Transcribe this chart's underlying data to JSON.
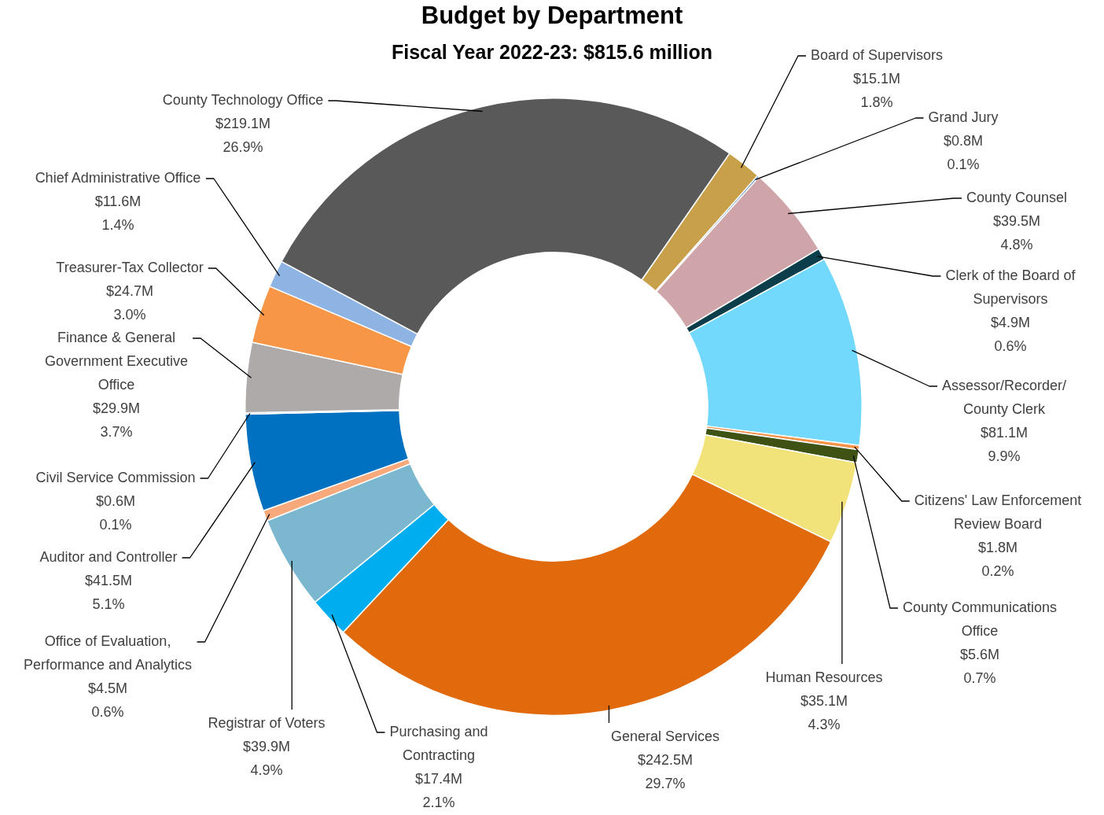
{
  "chart_data": {
    "type": "donut",
    "title": "Budget by Department",
    "subtitle": "Fiscal Year 2022-23: $815.6 million",
    "categories": [
      "Board of Supervisors",
      "Grand Jury",
      "County Counsel",
      "Clerk of the Board of Supervisors",
      "Assessor/Recorder/ County Clerk",
      "Citizens' Law Enforcement Review Board",
      "County Communications Office",
      "Human Resources",
      "General Services",
      "Purchasing and Contracting",
      "Registrar of Voters",
      "Office of Evaluation, Performance and Analytics",
      "Auditor and Controller",
      "Civil Service Commission",
      "Finance & General Government Executive Office",
      "Treasurer-Tax Collector",
      "Chief Administrative Office",
      "County Technology Office"
    ],
    "values": [
      15.1,
      0.8,
      39.5,
      4.9,
      81.1,
      1.8,
      5.6,
      35.1,
      242.5,
      17.4,
      39.9,
      4.5,
      41.5,
      0.6,
      29.9,
      24.7,
      11.6,
      219.1
    ],
    "colors": [
      "#c9a04a",
      "#2e75b6",
      "#d0a5aa",
      "#0b3d4a",
      "#72d8fc",
      "#f4934c",
      "#3e5214",
      "#f2e27a",
      "#e06a0c",
      "#00aeef",
      "#7bb8cf",
      "#f7a97b",
      "#0070c0",
      "#264478",
      "#aeaaaa",
      "#f79646",
      "#8eb4e3",
      "#595959"
    ],
    "value_labels": [
      "$15.1M",
      "$0.8M",
      "$39.5M",
      "$4.9M",
      "$81.1M",
      "$1.8M",
      "$5.6M",
      "$35.1M",
      "$242.5M",
      "$17.4M",
      "$39.9M",
      "$4.5M",
      "$41.5M",
      "$0.6M",
      "$29.9M",
      "$24.7M",
      "$11.6M",
      "$219.1M"
    ],
    "annotations": [
      "1.8%",
      "0.1%",
      "4.8%",
      "0.6%",
      "9.9%",
      "0.2%",
      "0.7%",
      "4.3%",
      "29.7%",
      "2.1%",
      "4.9%",
      "0.6%",
      "5.1%",
      "0.1%",
      "3.7%",
      "3.0%",
      "1.4%",
      "26.9%"
    ],
    "legend": false
  }
}
